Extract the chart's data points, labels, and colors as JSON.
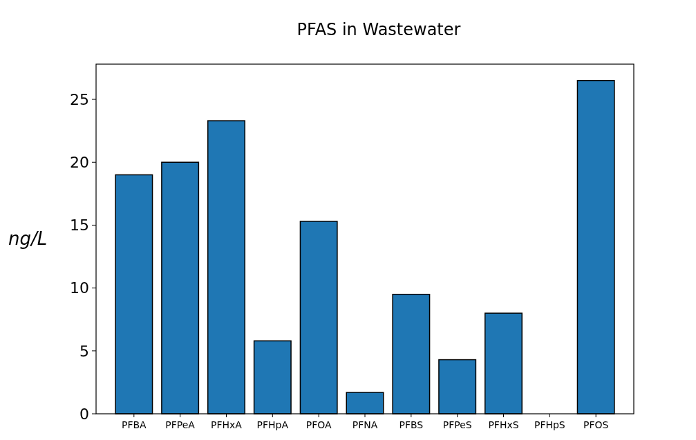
{
  "chart_data": {
    "type": "bar",
    "title": "PFAS in Wastewater",
    "ylabel": "ng/L",
    "categories": [
      "PFBA",
      "PFPeA",
      "PFHxA",
      "PFHpA",
      "PFOA",
      "PFNA",
      "PFBS",
      "PFPeS",
      "PFHxS",
      "PFHpS",
      "PFOS"
    ],
    "values": [
      19.0,
      20.0,
      23.3,
      5.8,
      15.3,
      1.7,
      9.5,
      4.3,
      8.0,
      0,
      26.5
    ],
    "color": "#1f77b4",
    "ylim": [
      0,
      27.8
    ],
    "yticks": [
      0,
      5,
      10,
      15,
      20,
      25
    ]
  }
}
